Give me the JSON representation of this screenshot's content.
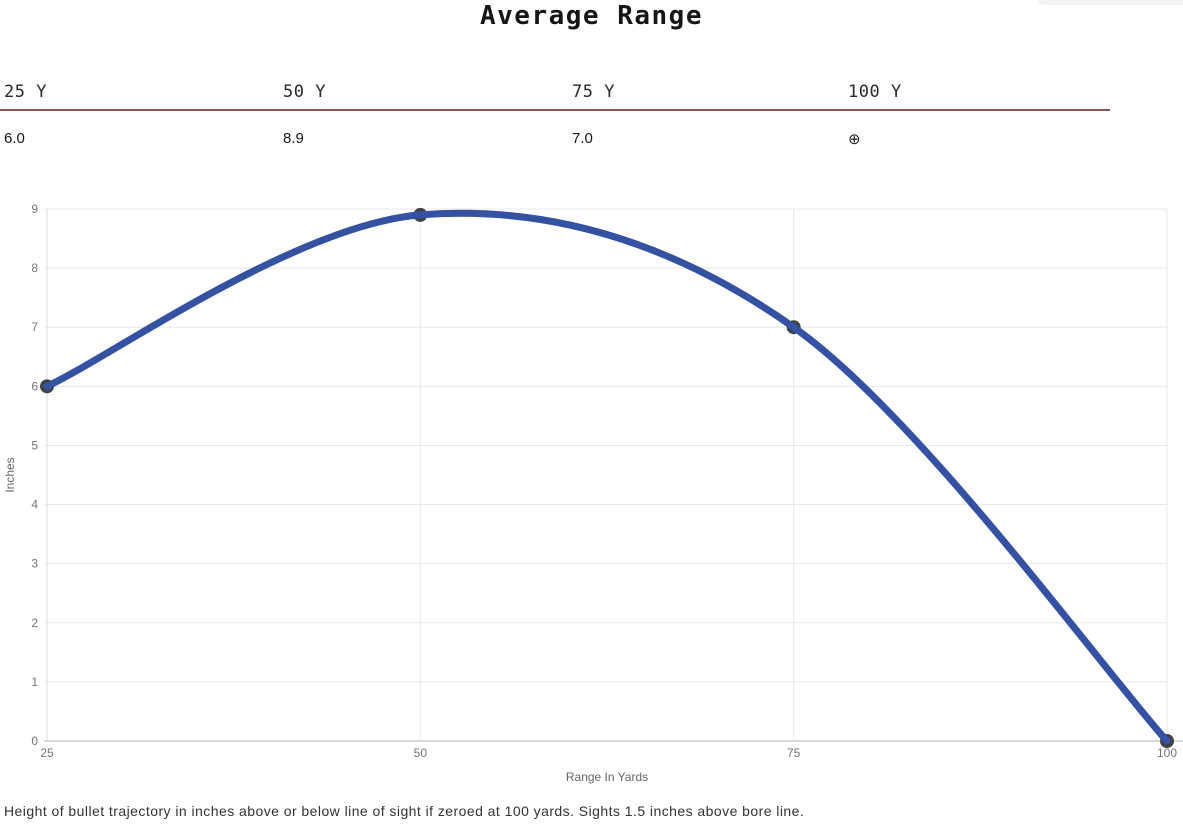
{
  "page": {
    "title": "Average Range",
    "caption": "Height of bullet trajectory in inches above or below line of sight if zeroed at 100 yards. Sights 1.5 inches above bore line."
  },
  "summary": {
    "accent_color": "#8e564e",
    "columns": [
      {
        "label": "25 Y",
        "value": "6.0"
      },
      {
        "label": "50 Y",
        "value": "8.9"
      },
      {
        "label": "75 Y",
        "value": "7.0"
      },
      {
        "label": "100 Y",
        "value": "⊕"
      }
    ],
    "zero_symbol_name": "zero-crosshair"
  },
  "chart_data": {
    "type": "line",
    "x": [
      25,
      50,
      75,
      100
    ],
    "series": [
      {
        "name": "Average Range",
        "values": [
          6.0,
          8.9,
          7.0,
          0.0
        ]
      }
    ],
    "title": "",
    "xlabel": "Range In Yards",
    "ylabel": "Inches",
    "xlim": [
      25,
      100
    ],
    "ylim": [
      0,
      9
    ],
    "xticks": [
      25,
      50,
      75,
      100
    ],
    "yticks": [
      0,
      1,
      2,
      3,
      4,
      5,
      6,
      7,
      8,
      9
    ],
    "grid": true,
    "legend_position": "none",
    "line_color": "#3451a2",
    "marker_color": "#3f4246"
  }
}
